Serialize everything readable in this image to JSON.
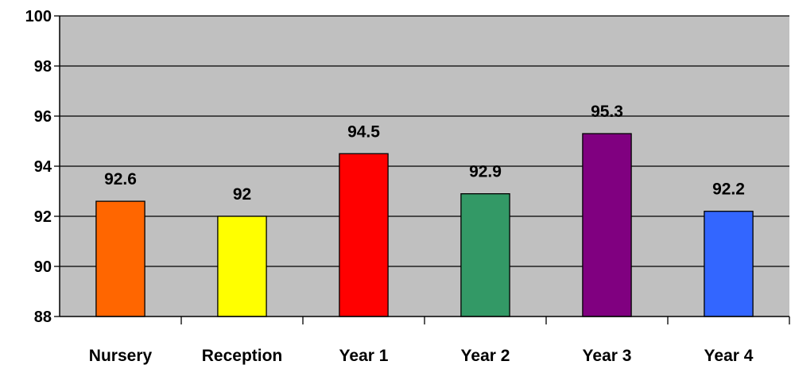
{
  "chart_data": {
    "type": "bar",
    "title": "",
    "xlabel": "",
    "ylabel": "",
    "categories": [
      "Nursery",
      "Reception",
      "Year 1",
      "Year 2",
      "Year 3",
      "Year 4"
    ],
    "values": [
      92.6,
      92,
      94.5,
      92.9,
      95.3,
      92.2
    ],
    "value_labels": [
      "92.6",
      "92",
      "94.5",
      "92.9",
      "95.3",
      "92.2"
    ],
    "bar_colors": [
      "#ff6600",
      "#ffff00",
      "#ff0000",
      "#339966",
      "#800080",
      "#3366ff"
    ],
    "ylim": [
      88,
      100
    ],
    "yticks": [
      88,
      90,
      92,
      94,
      96,
      98,
      100
    ],
    "grid": true,
    "plot_background": "#c0c0c0",
    "gridline_color": "#000000",
    "legend": "none"
  }
}
